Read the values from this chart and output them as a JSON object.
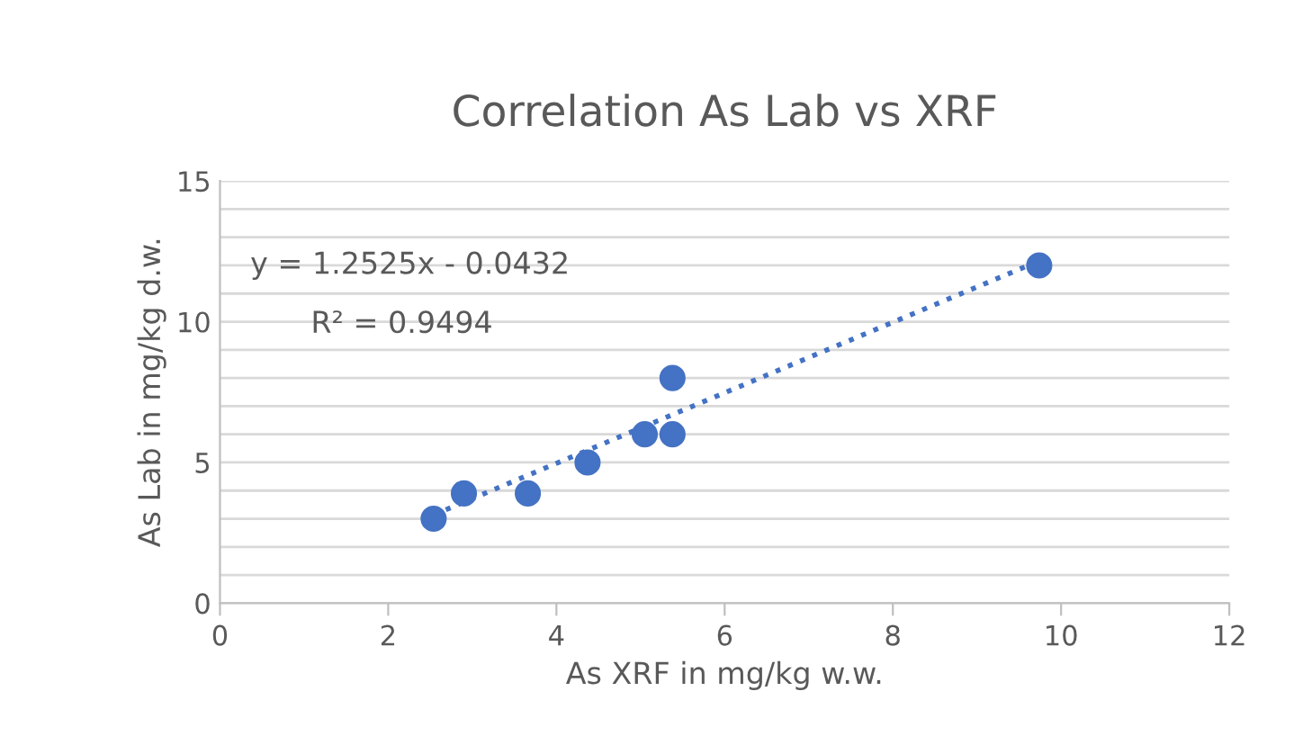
{
  "chart_data": {
    "type": "scatter",
    "title": "Correlation As Lab vs XRF",
    "xlabel": "As XRF in mg/kg w.w.",
    "ylabel": "As Lab in mg/kg d.w.",
    "series": [
      {
        "color": "#4472c4",
        "marker": "circle",
        "x": [
          2.54,
          2.9,
          3.66,
          4.37,
          5.05,
          5.38,
          5.38,
          9.74
        ],
        "values": [
          3,
          3.9,
          3.9,
          5,
          6,
          6,
          8,
          12
        ]
      },
      {
        "type": "line",
        "color": "#4472c4",
        "line_style": "dotted",
        "x": [
          2.54,
          9.74
        ],
        "values": [
          3.14,
          12.16
        ]
      }
    ],
    "annotations": [
      "y = 1.2525x - 0.0432",
      "R² = 0.9494"
    ],
    "xlim": [
      0,
      12
    ],
    "xticks": [
      0,
      2,
      4,
      6,
      8,
      10,
      12
    ],
    "ylim": [
      0,
      15
    ],
    "yticks": [
      0,
      {
        "value": 1,
        "label": null
      },
      {
        "value": 2,
        "label": null
      },
      {
        "value": 3,
        "label": null
      },
      {
        "value": 4,
        "label": null
      },
      5,
      {
        "value": 6,
        "label": null
      },
      {
        "value": 7,
        "label": null
      },
      {
        "value": 8,
        "label": null
      },
      {
        "value": 9,
        "label": null
      },
      10,
      {
        "value": 11,
        "label": null
      },
      {
        "value": 12,
        "label": null
      },
      {
        "value": 13,
        "label": null
      },
      {
        "value": 14,
        "label": null
      },
      15
    ],
    "grid": "y"
  }
}
